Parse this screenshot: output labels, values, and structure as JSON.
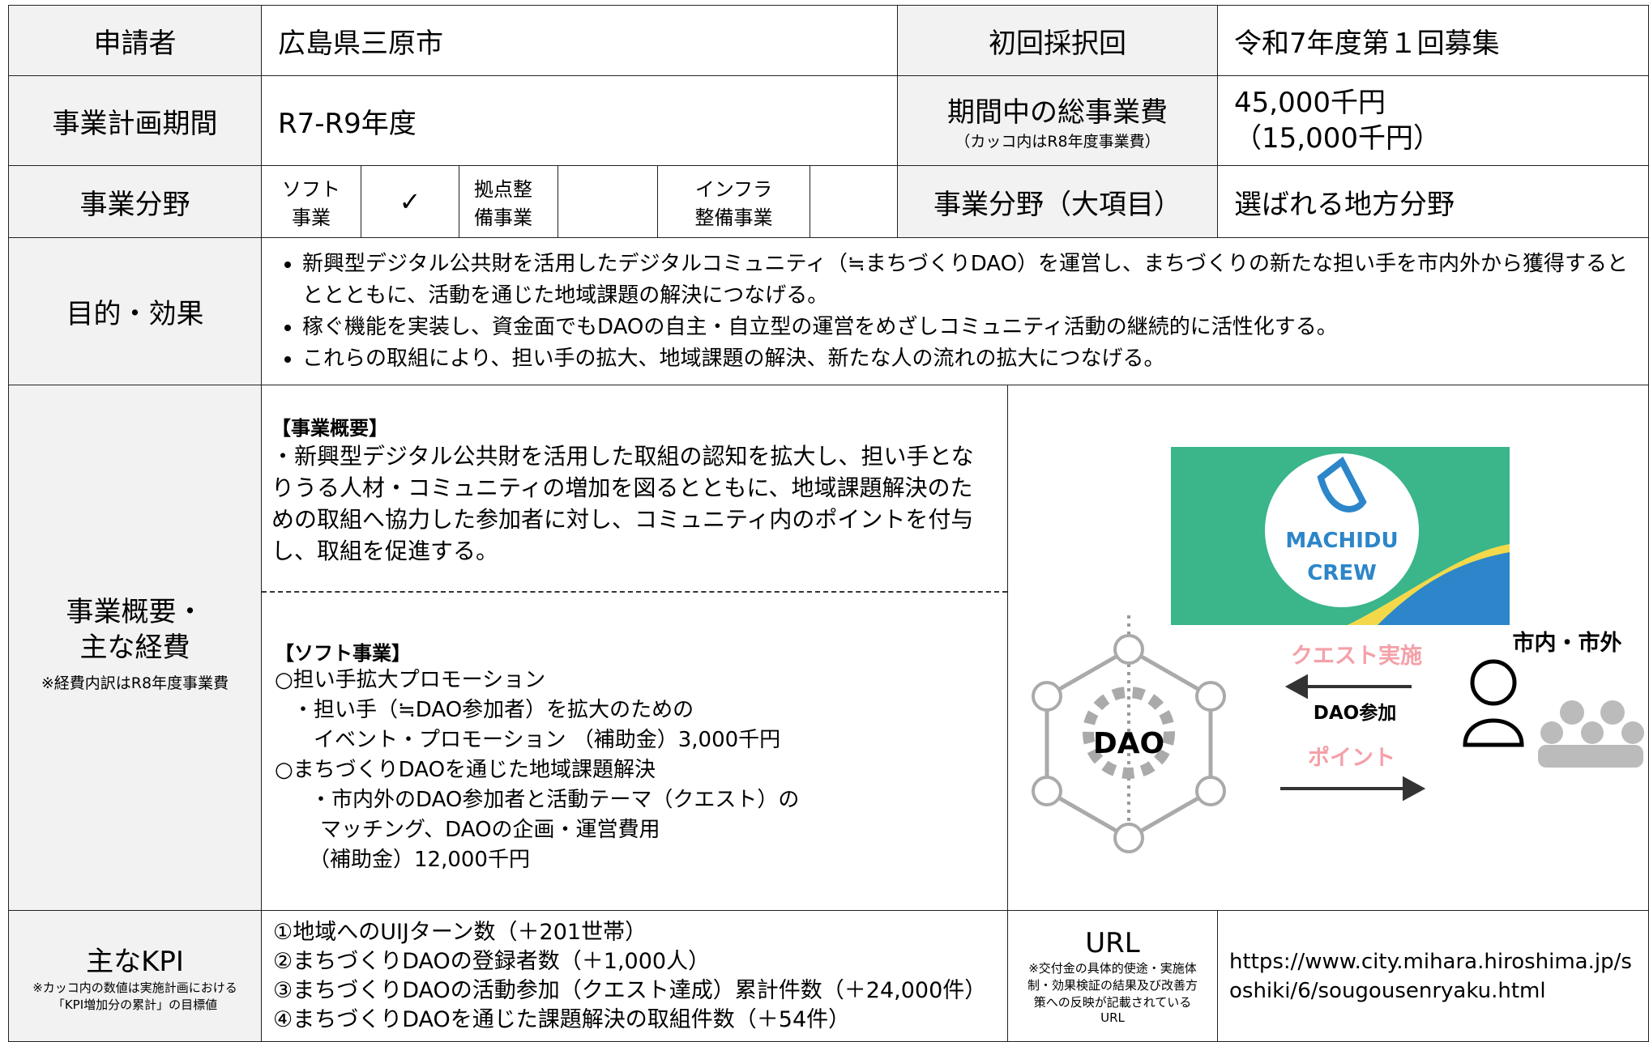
{
  "header": {
    "applicant_label": "申請者",
    "applicant": "広島県三原市",
    "first_round_label": "初回採択回",
    "first_round": "令和7年度第１回募集"
  },
  "period": {
    "label": "事業計画期間",
    "value": "R7-R9年度",
    "cost_label": "期間中の総事業費",
    "cost_note": "（カッコ内はR8年度事業費）",
    "cost_total": "45,000千円",
    "cost_r8": "（15,000千円）"
  },
  "field": {
    "label": "事業分野",
    "soft": "ソフト事業",
    "soft_check": "✓",
    "base": "拠点整備事業",
    "infra": "インフラ整備事業",
    "major_label": "事業分野（大項目）",
    "major": "選ばれる地方分野"
  },
  "purpose": {
    "label": "目的・効果",
    "bullets": [
      "新興型デジタル公共財を活用したデジタルコミュニティ（≒まちづくりDAO）を運営し、まちづくりの新たな担い手を市内外から獲得するとととともに、活動を通じた地域課題の解決につなげる。",
      "稼ぐ機能を実装し、資金面でもDAOの自主・自立型の運営をめざしコミュニティ活動の継続的に活性化する。",
      "これらの取組により、担い手の拡大、地域課題の解決、新たな人の流れの拡大につなげる。"
    ]
  },
  "overview": {
    "label": "事業概要・",
    "label2": "主な経費",
    "note": "※経費内訳はR8年度事業費",
    "summary_heading": "【事業概要】",
    "summary": "・新興型デジタル公共財を活用した取組の認知を拡大し、担い手となりうる人材・コミュニティの増加を図るとともに、地域課題解決のための取組へ協力した参加者に対し、コミュニティ内のポイントを付与し、取組を促進する。",
    "soft_heading": "【ソフト事業】",
    "soft_lines": [
      "○担い手拡大プロモーション",
      "・担い手（≒DAO参加者）を拡大のための",
      "イベント・プロモーション （補助金）3,000千円",
      "○まちづくりDAOを通じた地域課題解決",
      "・市内外のDAO参加者と活動テーマ（クエスト）の",
      "マッチング、DAOの企画・運営費用",
      "（補助金）12,000千円"
    ],
    "diagram": {
      "logo1": "MACHIDU",
      "logo2": "CREW",
      "dao": "DAO",
      "quest": "クエスト実施",
      "join": "DAO参加",
      "point": "ポイント",
      "citizens": "市内・市外"
    }
  },
  "kpi": {
    "label": "主なKPI",
    "note": "※カッコ内の数値は実施計画における「KPI増加分の累計」の目標値",
    "items": [
      "①地域へのUIJターン数（＋201世帯）",
      "②まちづくりDAOの登録者数（＋1,000人）",
      "③まちづくりDAOの活動参加（クエスト達成）累計件数（＋24,000件）",
      "④まちづくりDAOを通じた課題解決の取組件数（＋54件）"
    ],
    "url_label": "URL",
    "url_note": "※交付金の具体的使途・実施体制・効果検証の結果及び改善方策への反映が記載されているURL",
    "url": "https://www.city.mihara.hiroshima.jp/soshiki/6/sougousenryaku.html"
  }
}
